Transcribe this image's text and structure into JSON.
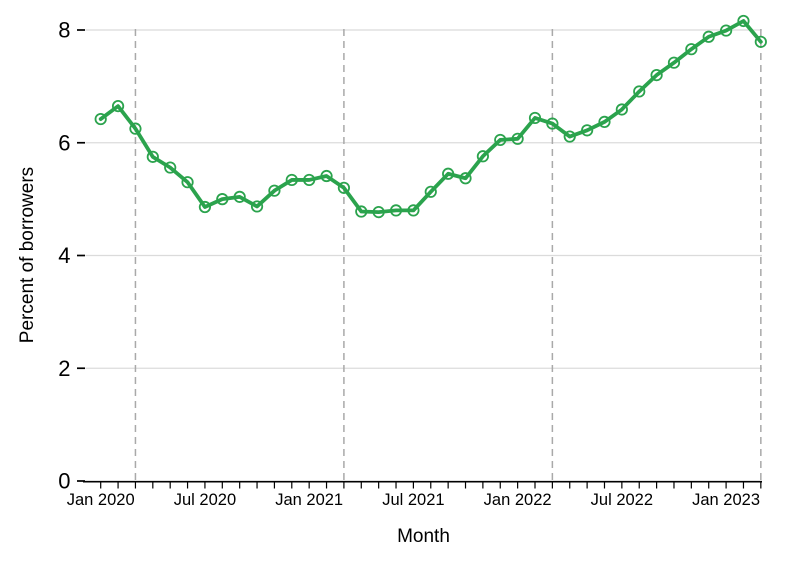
{
  "figure": {
    "xlabel": "Month",
    "ylabel": "Percent of borrowers"
  },
  "chart_data": {
    "type": "line",
    "title": "",
    "xlabel": "Month",
    "ylabel": "Percent of borrowers",
    "x": [
      "Jan 2020",
      "Feb 2020",
      "Mar 2020",
      "Apr 2020",
      "May 2020",
      "Jun 2020",
      "Jul 2020",
      "Aug 2020",
      "Sep 2020",
      "Oct 2020",
      "Nov 2020",
      "Dec 2020",
      "Jan 2021",
      "Feb 2021",
      "Mar 2021",
      "Apr 2021",
      "May 2021",
      "Jun 2021",
      "Jul 2021",
      "Aug 2021",
      "Sep 2021",
      "Oct 2021",
      "Nov 2021",
      "Dec 2021",
      "Jan 2022",
      "Feb 2022",
      "Mar 2022",
      "Apr 2022",
      "May 2022",
      "Jun 2022",
      "Jul 2022",
      "Aug 2022",
      "Sep 2022",
      "Oct 2022",
      "Nov 2022",
      "Dec 2022",
      "Jan 2023",
      "Feb 2023",
      "Mar 2023"
    ],
    "values": [
      6.42,
      6.65,
      6.25,
      5.75,
      5.56,
      5.3,
      4.86,
      5.0,
      5.04,
      4.87,
      5.15,
      5.34,
      5.34,
      5.41,
      5.2,
      4.78,
      4.77,
      4.8,
      4.8,
      5.13,
      5.45,
      5.37,
      5.76,
      6.05,
      6.07,
      6.44,
      6.34,
      6.11,
      6.22,
      6.37,
      6.59,
      6.91,
      7.2,
      7.42,
      7.66,
      7.88,
      7.99,
      8.16,
      7.79
    ],
    "y_ticks": [
      0,
      2,
      4,
      6,
      8
    ],
    "y_tick_labels": [
      "0",
      "2",
      "4",
      "6",
      "8"
    ],
    "ylim": [
      0,
      8.35
    ],
    "x_ticks": [
      {
        "index": 0,
        "label": "Jan 2020"
      },
      {
        "index": 6,
        "label": "Jul 2020"
      },
      {
        "index": 12,
        "label": "Jan 2021"
      },
      {
        "index": 18,
        "label": "Jul 2021"
      },
      {
        "index": 24,
        "label": "Jan 2022"
      },
      {
        "index": 30,
        "label": "Jul 2022"
      },
      {
        "index": 36,
        "label": "Jan 2023"
      }
    ],
    "minor_x_ticks": "monthly",
    "vlines": {
      "months": [
        "Mar 2020",
        "Mar 2021",
        "Mar 2022",
        "Mar 2023"
      ],
      "indices": [
        2,
        14,
        26,
        38
      ],
      "style": "dashed"
    },
    "grid": "horizontal-light",
    "legend": "none",
    "marker": "open-circle",
    "colors": {
      "line": "#2BA34D",
      "grid": "#DBDBDB",
      "vline": "#A9A9A9",
      "axis": "#000000"
    }
  }
}
